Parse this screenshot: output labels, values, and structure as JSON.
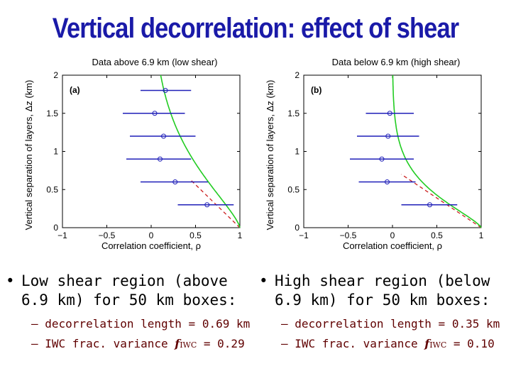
{
  "title": "Vertical decorrelation: effect of shear",
  "chart_data": [
    {
      "type": "scatter",
      "panel": "(a)",
      "title": "Data above 6.9 km (low shear)",
      "xlabel": "Correlation coefficient, ρ",
      "ylabel": "Vertical separation of layers, Δz (km)",
      "xlim": [
        -1,
        1
      ],
      "ylim": [
        0,
        2
      ],
      "xticks": [
        -1,
        -0.5,
        0,
        0.5,
        1
      ],
      "xtick_labels": [
        "−1",
        "−0.5",
        "0",
        "0.5",
        "1"
      ],
      "yticks": [
        0,
        0.5,
        1,
        1.5,
        2
      ],
      "ytick_labels": [
        "0",
        "0.5",
        "1",
        "1.5",
        "2"
      ],
      "points": [
        {
          "dz": 0.3,
          "rho": 0.63,
          "low": 0.3,
          "high": 0.93
        },
        {
          "dz": 0.6,
          "rho": 0.27,
          "low": -0.12,
          "high": 0.64
        },
        {
          "dz": 0.9,
          "rho": 0.1,
          "low": -0.28,
          "high": 0.45
        },
        {
          "dz": 1.2,
          "rho": 0.14,
          "low": -0.24,
          "high": 0.5
        },
        {
          "dz": 1.5,
          "rho": 0.04,
          "low": -0.32,
          "high": 0.38
        },
        {
          "dz": 1.8,
          "rho": 0.16,
          "low": -0.12,
          "high": 0.45
        }
      ],
      "green_curve_decorrelation_length_km": 0.69,
      "red_dashed_line": [
        [
          1,
          0
        ],
        [
          0.45,
          0.62
        ]
      ]
    },
    {
      "type": "scatter",
      "panel": "(b)",
      "title": "Data below 6.9 km (high shear)",
      "xlabel": "Correlation coefficient, ρ",
      "ylabel": "Vertical separation of layers, Δz (km)",
      "xlim": [
        -1,
        1
      ],
      "ylim": [
        0,
        2
      ],
      "xticks": [
        -1,
        -0.5,
        0,
        0.5,
        1
      ],
      "xtick_labels": [
        "−1",
        "−0.5",
        "0",
        "0.5",
        "1"
      ],
      "yticks": [
        0,
        0.5,
        1,
        1.5,
        2
      ],
      "ytick_labels": [
        "0",
        "0.5",
        "1",
        "1.5",
        "2"
      ],
      "points": [
        {
          "dz": 0.3,
          "rho": 0.42,
          "low": 0.1,
          "high": 0.73
        },
        {
          "dz": 0.6,
          "rho": -0.06,
          "low": -0.38,
          "high": 0.26
        },
        {
          "dz": 0.9,
          "rho": -0.12,
          "low": -0.48,
          "high": 0.24
        },
        {
          "dz": 1.2,
          "rho": -0.05,
          "low": -0.4,
          "high": 0.3
        },
        {
          "dz": 1.5,
          "rho": -0.03,
          "low": -0.3,
          "high": 0.24
        }
      ],
      "green_curve_decorrelation_length_km": 0.35,
      "red_dashed_line": [
        [
          1,
          0
        ],
        [
          0.1,
          0.7
        ]
      ]
    }
  ],
  "bullets": {
    "left": {
      "line1": "Low shear region (above",
      "line2": "6.9 km) for 50 km boxes:",
      "sub1": "– decorrelation length = 0.69 km",
      "sub2_prefix": "– IWC frac. variance ",
      "f_symbol": "f",
      "f_subscript": "IWC",
      "sub2_value": " = 0.29"
    },
    "right": {
      "line1": "High shear region (below",
      "line2": "6.9 km) for 50 km boxes:",
      "sub1": "– decorrelation length = 0.35 km",
      "sub2_prefix": "– IWC frac. variance ",
      "f_symbol": "f",
      "f_subscript": "IWC",
      "sub2_value": " = 0.10"
    },
    "marker": "•"
  },
  "colors": {
    "title": "#1a1aa8",
    "errorbar": "#1f1fb8",
    "curve": "#22cc22",
    "dashed": "#cc2222",
    "subbullet": "#600000"
  }
}
